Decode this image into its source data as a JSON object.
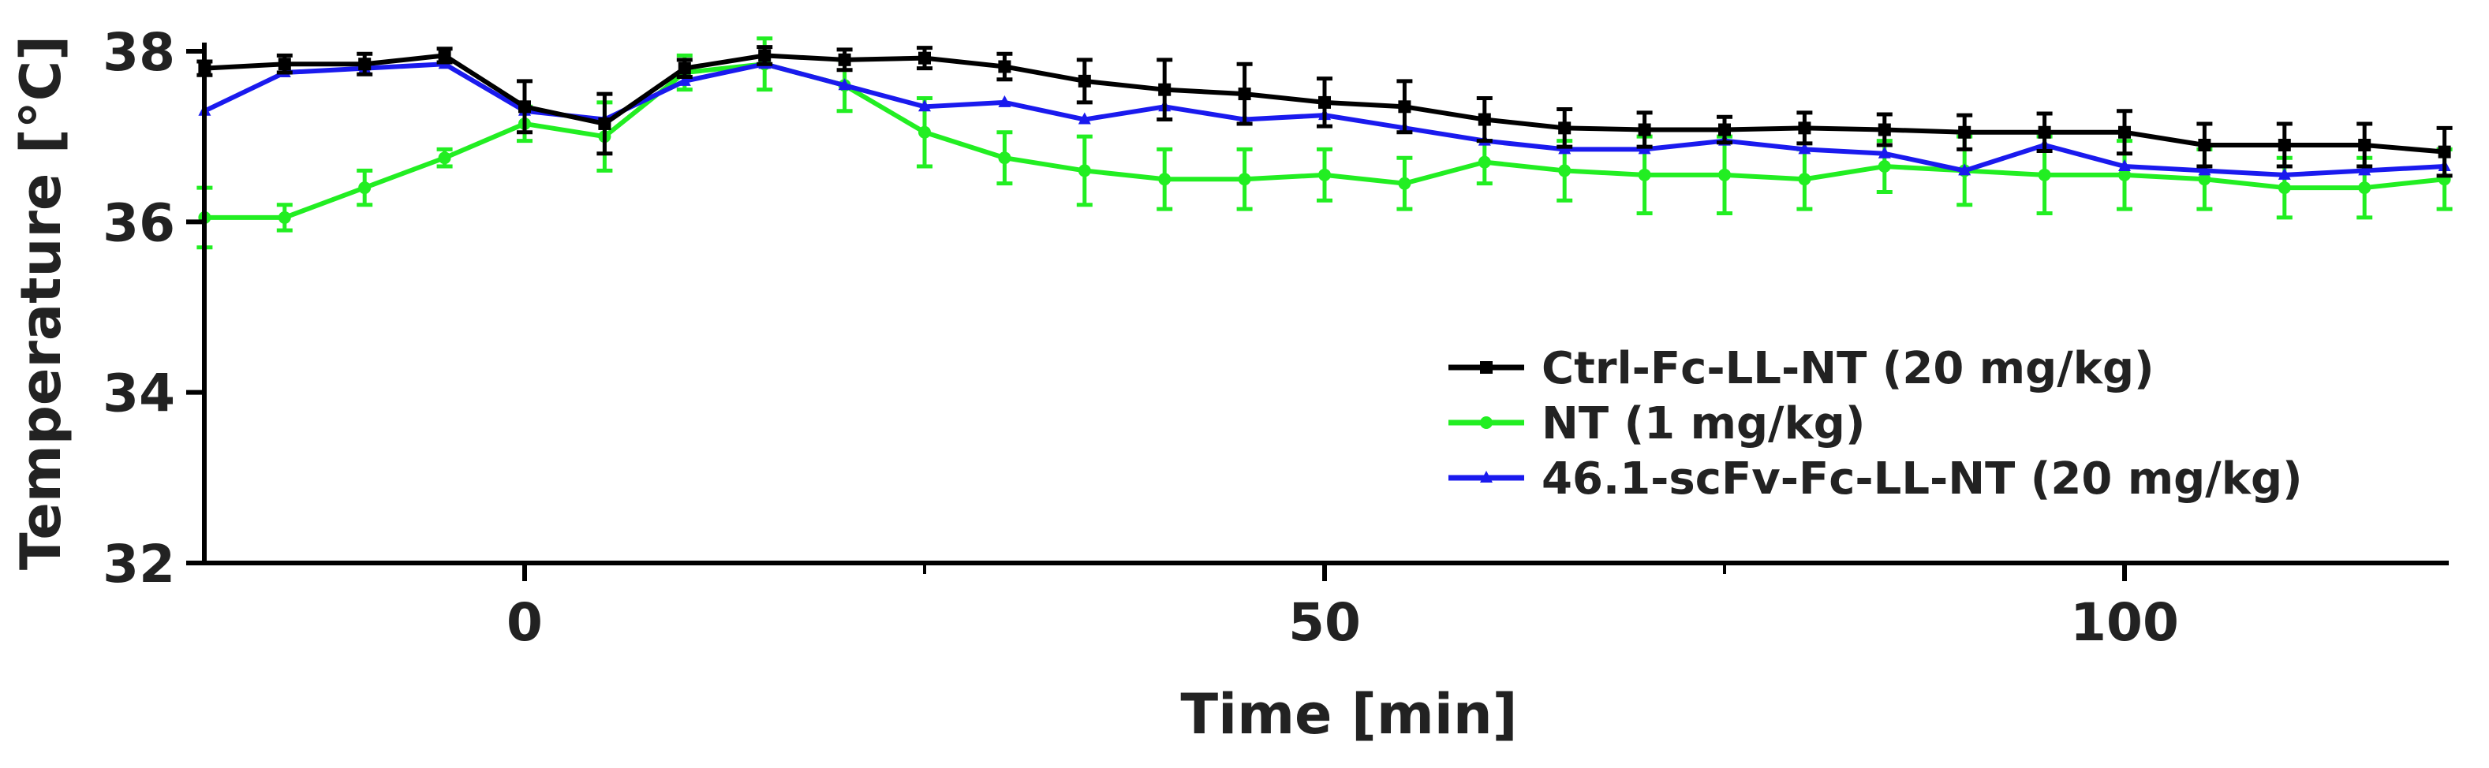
{
  "chart_data": {
    "type": "line",
    "title": "",
    "xlabel": "Time [min]",
    "ylabel": "Temperature [°C]",
    "xlim": [
      -20,
      120
    ],
    "ylim": [
      32,
      38
    ],
    "xticks": [
      0,
      50,
      100
    ],
    "xtick_labels": [
      "0",
      "50",
      "100"
    ],
    "yticks": [
      32,
      34,
      36,
      38
    ],
    "ytick_labels": [
      "32",
      "34",
      "36",
      "38"
    ],
    "legend_position": "center-right",
    "series": [
      {
        "name": "Ctrl-Fc-LL-NT (20 mg/kg)",
        "color": "#000000",
        "marker": "square",
        "x": [
          -20,
          -15,
          -10,
          -5,
          0,
          5,
          10,
          15,
          20,
          25,
          30,
          35,
          40,
          45,
          50,
          55,
          60,
          65,
          70,
          75,
          80,
          85,
          90,
          95,
          100,
          105,
          110,
          115,
          120
        ],
        "y": [
          37.8,
          37.85,
          37.85,
          37.95,
          37.35,
          37.15,
          37.8,
          37.95,
          37.9,
          37.92,
          37.82,
          37.65,
          37.55,
          37.5,
          37.4,
          37.35,
          37.2,
          37.1,
          37.08,
          37.08,
          37.1,
          37.08,
          37.05,
          37.05,
          37.05,
          36.9,
          36.9,
          36.9,
          36.82
        ],
        "err": [
          0.08,
          0.1,
          0.12,
          0.08,
          0.3,
          0.35,
          0.1,
          0.1,
          0.12,
          0.12,
          0.15,
          0.25,
          0.35,
          0.35,
          0.28,
          0.3,
          0.25,
          0.22,
          0.2,
          0.15,
          0.18,
          0.18,
          0.2,
          0.22,
          0.25,
          0.25,
          0.25,
          0.25,
          0.28
        ]
      },
      {
        "name": "NT (1 mg/kg)",
        "color": "#22ee22",
        "marker": "circle",
        "x": [
          -20,
          -15,
          -10,
          -5,
          0,
          5,
          10,
          15,
          20,
          25,
          30,
          35,
          40,
          45,
          50,
          55,
          60,
          65,
          70,
          75,
          80,
          85,
          90,
          95,
          100,
          105,
          110,
          115,
          120
        ],
        "y": [
          36.05,
          36.05,
          36.4,
          36.75,
          37.15,
          37.0,
          37.75,
          37.85,
          37.6,
          37.05,
          36.75,
          36.6,
          36.5,
          36.5,
          36.55,
          36.45,
          36.7,
          36.6,
          36.55,
          36.55,
          36.5,
          36.65,
          36.6,
          36.55,
          36.55,
          36.5,
          36.4,
          36.4,
          36.5
        ],
        "err": [
          0.35,
          0.15,
          0.2,
          0.1,
          0.2,
          0.4,
          0.2,
          0.3,
          0.3,
          0.4,
          0.3,
          0.4,
          0.35,
          0.35,
          0.3,
          0.3,
          0.25,
          0.35,
          0.45,
          0.45,
          0.35,
          0.3,
          0.4,
          0.45,
          0.4,
          0.35,
          0.35,
          0.35,
          0.35
        ]
      },
      {
        "name": "46.1-scFv-Fc-LL-NT (20 mg/kg)",
        "color": "#1a1aee",
        "marker": "triangle",
        "x": [
          -20,
          -15,
          -10,
          -5,
          0,
          5,
          10,
          15,
          20,
          25,
          30,
          35,
          40,
          45,
          50,
          55,
          60,
          65,
          70,
          75,
          80,
          85,
          90,
          95,
          100,
          105,
          110,
          115,
          120
        ],
        "y": [
          37.3,
          37.75,
          37.8,
          37.85,
          37.3,
          37.2,
          37.65,
          37.85,
          37.6,
          37.35,
          37.4,
          37.2,
          37.35,
          37.2,
          37.25,
          37.1,
          36.95,
          36.85,
          36.85,
          36.95,
          36.85,
          36.8,
          36.6,
          36.9,
          36.65,
          36.6,
          36.55,
          36.6,
          36.65
        ]
      }
    ]
  }
}
